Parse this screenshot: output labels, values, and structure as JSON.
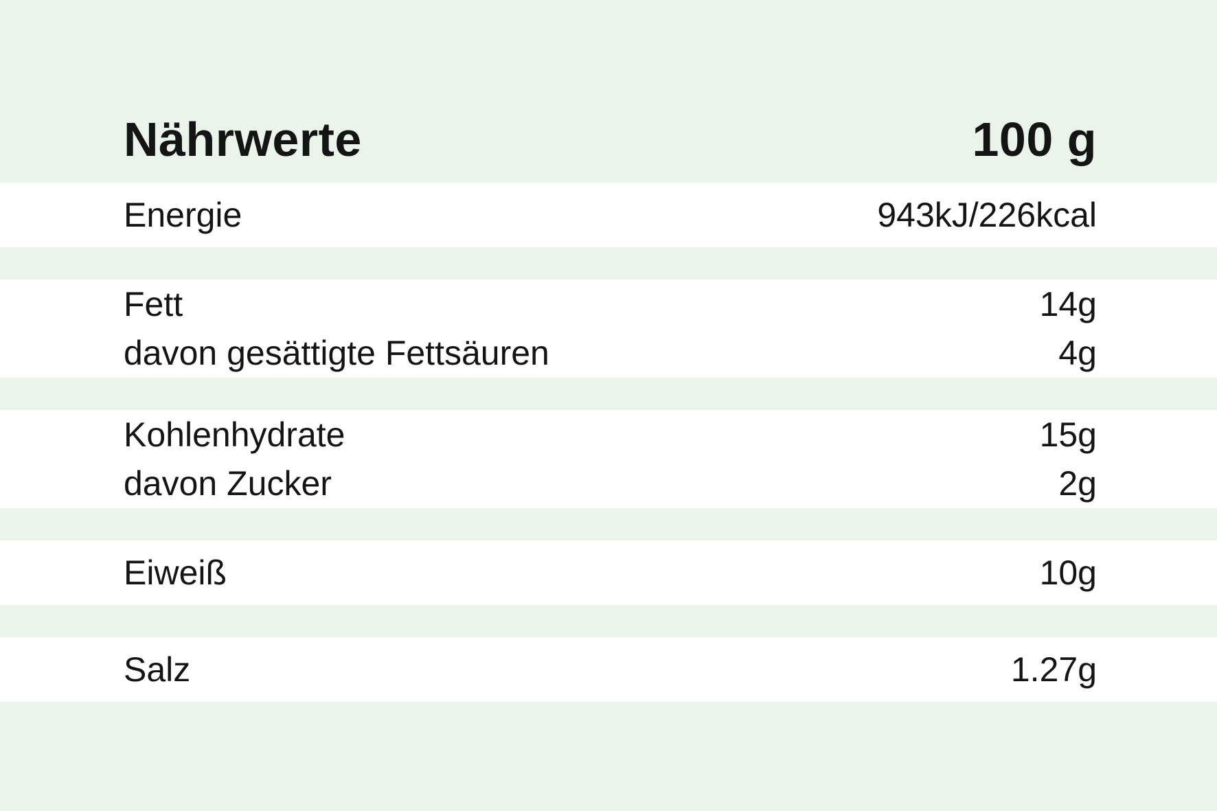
{
  "header": {
    "title": "Nährwerte",
    "amount_column": "100 g"
  },
  "nutrition": {
    "sections": [
      {
        "name": "energy",
        "rows": [
          {
            "label": "Energie",
            "value": "943kJ/226kcal"
          }
        ]
      },
      {
        "name": "fat",
        "rows": [
          {
            "label": "Fett",
            "value": "14g"
          },
          {
            "label": "davon gesättigte Fettsäuren",
            "value": "4g"
          }
        ]
      },
      {
        "name": "carbohydrates",
        "rows": [
          {
            "label": "Kohlenhydrate",
            "value": "15g"
          },
          {
            "label": "davon Zucker",
            "value": "2g"
          }
        ]
      },
      {
        "name": "protein",
        "rows": [
          {
            "label": "Eiweiß",
            "value": "10g"
          }
        ]
      },
      {
        "name": "salt",
        "rows": [
          {
            "label": "Salz",
            "value": "1.27g"
          }
        ]
      }
    ]
  },
  "colors": {
    "background_green": "#eaf4eb",
    "row_white": "#ffffff",
    "text": "#141414"
  }
}
